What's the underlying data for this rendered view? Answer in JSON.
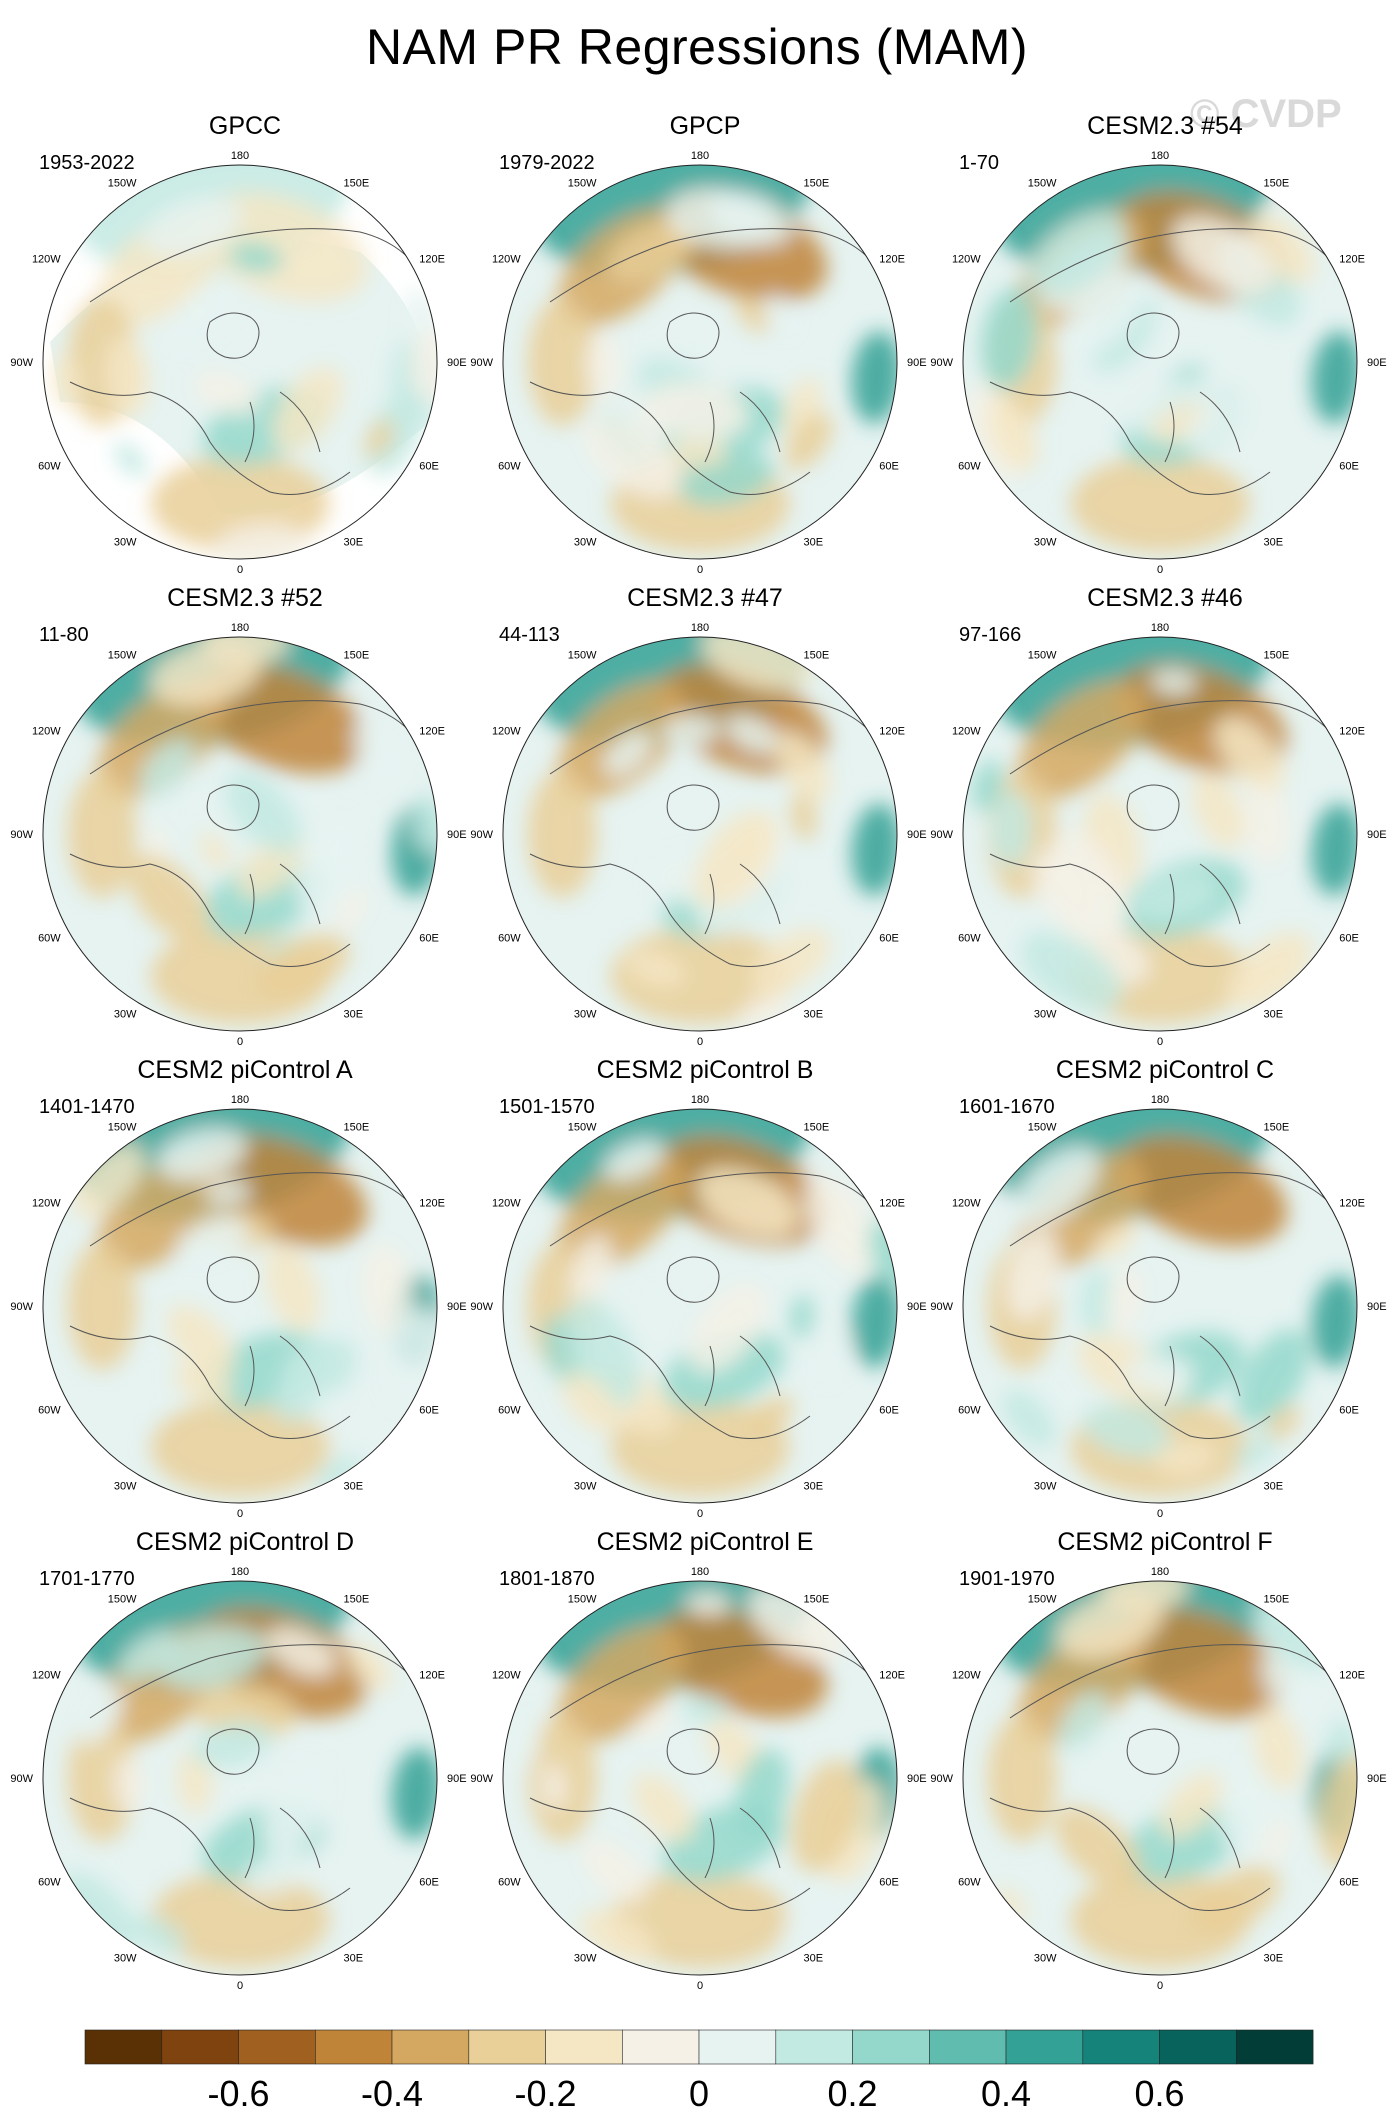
{
  "title": "NAM PR Regressions (MAM)",
  "watermark": "© CVDP",
  "longitude_labels": {
    "top": "180",
    "upper_left": "150W",
    "upper_right": "150E",
    "mid_upper_left": "120W",
    "mid_upper_right": "120E",
    "left": "90W",
    "right": "90E",
    "mid_lower_left": "60W",
    "mid_lower_right": "60E",
    "lower_left": "30W",
    "lower_right": "30E",
    "bottom": "0"
  },
  "chart_data": {
    "type": "heatmap",
    "projection": "polar-stereographic (north)",
    "panels": [
      {
        "title": "GPCC",
        "years": "1953-2022",
        "land_only": true
      },
      {
        "title": "GPCP",
        "years": "1979-2022"
      },
      {
        "title": "CESM2.3 #54",
        "years": "1-70"
      },
      {
        "title": "CESM2.3 #52",
        "years": "11-80"
      },
      {
        "title": "CESM2.3 #47",
        "years": "44-113"
      },
      {
        "title": "CESM2.3 #46",
        "years": "97-166"
      },
      {
        "title": "CESM2 piControl A",
        "years": "1401-1470"
      },
      {
        "title": "CESM2 piControl B",
        "years": "1501-1570"
      },
      {
        "title": "CESM2 piControl C",
        "years": "1601-1670"
      },
      {
        "title": "CESM2 piControl D",
        "years": "1701-1770"
      },
      {
        "title": "CESM2 piControl E",
        "years": "1801-1870"
      },
      {
        "title": "CESM2 piControl F",
        "years": "1901-1970"
      }
    ],
    "colorbar": {
      "levels": [
        -0.8,
        -0.7,
        -0.6,
        -0.5,
        -0.4,
        -0.3,
        -0.2,
        -0.1,
        0,
        0.1,
        0.2,
        0.3,
        0.4,
        0.5,
        0.6,
        0.7,
        0.8
      ],
      "colors": [
        "#5a3005",
        "#7f4310",
        "#a0601f",
        "#bf8438",
        "#d5a862",
        "#e9cf98",
        "#f5e6c4",
        "#f5f1e6",
        "#e6f3f1",
        "#c2e9e2",
        "#94d8cb",
        "#5fbcaf",
        "#33a195",
        "#16837a",
        "#07635b",
        "#023e37"
      ],
      "tick_labels": [
        "-0.6",
        "-0.4",
        "-0.2",
        "0",
        "0.2",
        "0.4",
        "0.6"
      ],
      "tick_values": [
        -0.6,
        -0.4,
        -0.2,
        0,
        0.2,
        0.4,
        0.6
      ]
    }
  }
}
